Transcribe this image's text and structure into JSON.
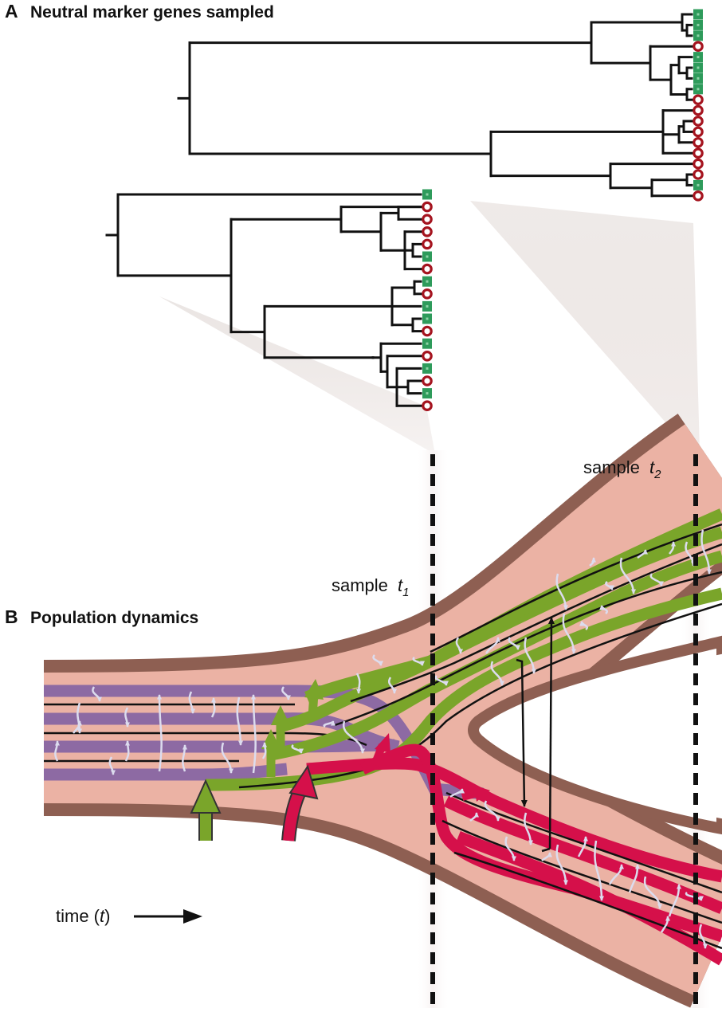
{
  "panels": {
    "a": {
      "letter": "A",
      "title": "Neutral marker genes sampled"
    },
    "b": {
      "letter": "B",
      "title": "Population dynamics"
    }
  },
  "samples": {
    "t1": {
      "word": "sample",
      "var": "t",
      "sub": "1"
    },
    "t2": {
      "word": "sample",
      "var": "t",
      "sub": "2"
    }
  },
  "time_axis": {
    "pre": "time (",
    "var": "t",
    "post": ")"
  },
  "colors": {
    "lineage_green": "#7aa52a",
    "lineage_red": "#d5104a",
    "lineage_purple": "#8d6aa3",
    "band_pink": "#ebb2a4",
    "band_brown": "#8e5f52",
    "marker_green": "#2e9b5b",
    "marker_red": "#a5141f",
    "mutation_arrow": "#dcdcee"
  },
  "trees": {
    "early": {
      "tips": [
        "g",
        "r",
        "r",
        "r",
        "r",
        "g",
        "r",
        "g",
        "r",
        "g",
        "g",
        "r",
        "g",
        "r",
        "g",
        "r",
        "g",
        "r"
      ]
    },
    "late": {
      "tips": [
        "g",
        "g",
        "g",
        "r",
        "g",
        "g",
        "g",
        "g",
        "r",
        "r",
        "r",
        "r",
        "r",
        "r",
        "r",
        "r",
        "g",
        "r"
      ]
    }
  }
}
